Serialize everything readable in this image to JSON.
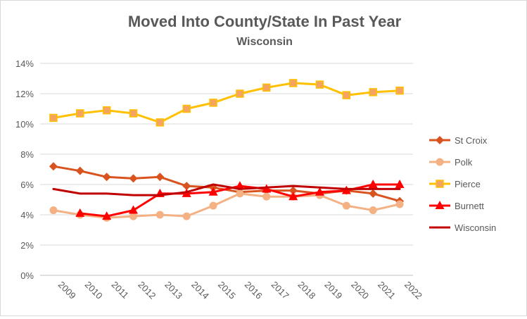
{
  "chart_data": {
    "type": "line",
    "title": "Moved Into County/State In Past Year",
    "subtitle": "Wisconsin",
    "xlabel": "",
    "ylabel": "",
    "categories": [
      "2009",
      "2010",
      "2011",
      "2012",
      "2013",
      "2014",
      "2015",
      "2016",
      "2017",
      "2018",
      "2019",
      "2020",
      "2021",
      "2022"
    ],
    "ylim": [
      0,
      14
    ],
    "yticks": [
      "0%",
      "2%",
      "4%",
      "6%",
      "8%",
      "10%",
      "12%",
      "14%"
    ],
    "ytick_values": [
      0,
      2,
      4,
      6,
      8,
      10,
      12,
      14
    ],
    "grid": true,
    "legend_position": "right",
    "series": [
      {
        "name": "St Croix",
        "color": "#d9531e",
        "marker": "diamond",
        "values": [
          7.2,
          6.9,
          6.5,
          6.4,
          6.5,
          5.9,
          5.8,
          5.5,
          5.6,
          5.6,
          5.4,
          5.6,
          5.4,
          4.9
        ]
      },
      {
        "name": "Polk",
        "color": "#f4b183",
        "marker": "circle",
        "values": [
          4.3,
          4.0,
          3.8,
          3.9,
          4.0,
          3.9,
          4.6,
          5.4,
          5.2,
          5.2,
          5.3,
          4.6,
          4.3,
          4.7
        ]
      },
      {
        "name": "Pierce",
        "color": "#ffc000",
        "marker": "square",
        "values": [
          10.4,
          10.7,
          10.9,
          10.7,
          10.1,
          11.0,
          11.4,
          12.0,
          12.4,
          12.7,
          12.6,
          11.9,
          12.1,
          12.2
        ]
      },
      {
        "name": "Burnett",
        "color": "#ff0000",
        "marker": "triangle",
        "values": [
          null,
          4.1,
          3.9,
          4.3,
          5.4,
          5.4,
          5.5,
          5.9,
          5.7,
          5.2,
          5.5,
          5.6,
          6.0,
          6.0
        ]
      },
      {
        "name": "Wisconsin",
        "color": "#c00000",
        "marker": "none",
        "values": [
          5.7,
          5.4,
          5.4,
          5.3,
          5.3,
          5.5,
          6.0,
          5.7,
          5.8,
          5.9,
          5.8,
          5.7,
          5.7,
          5.7
        ]
      }
    ]
  }
}
